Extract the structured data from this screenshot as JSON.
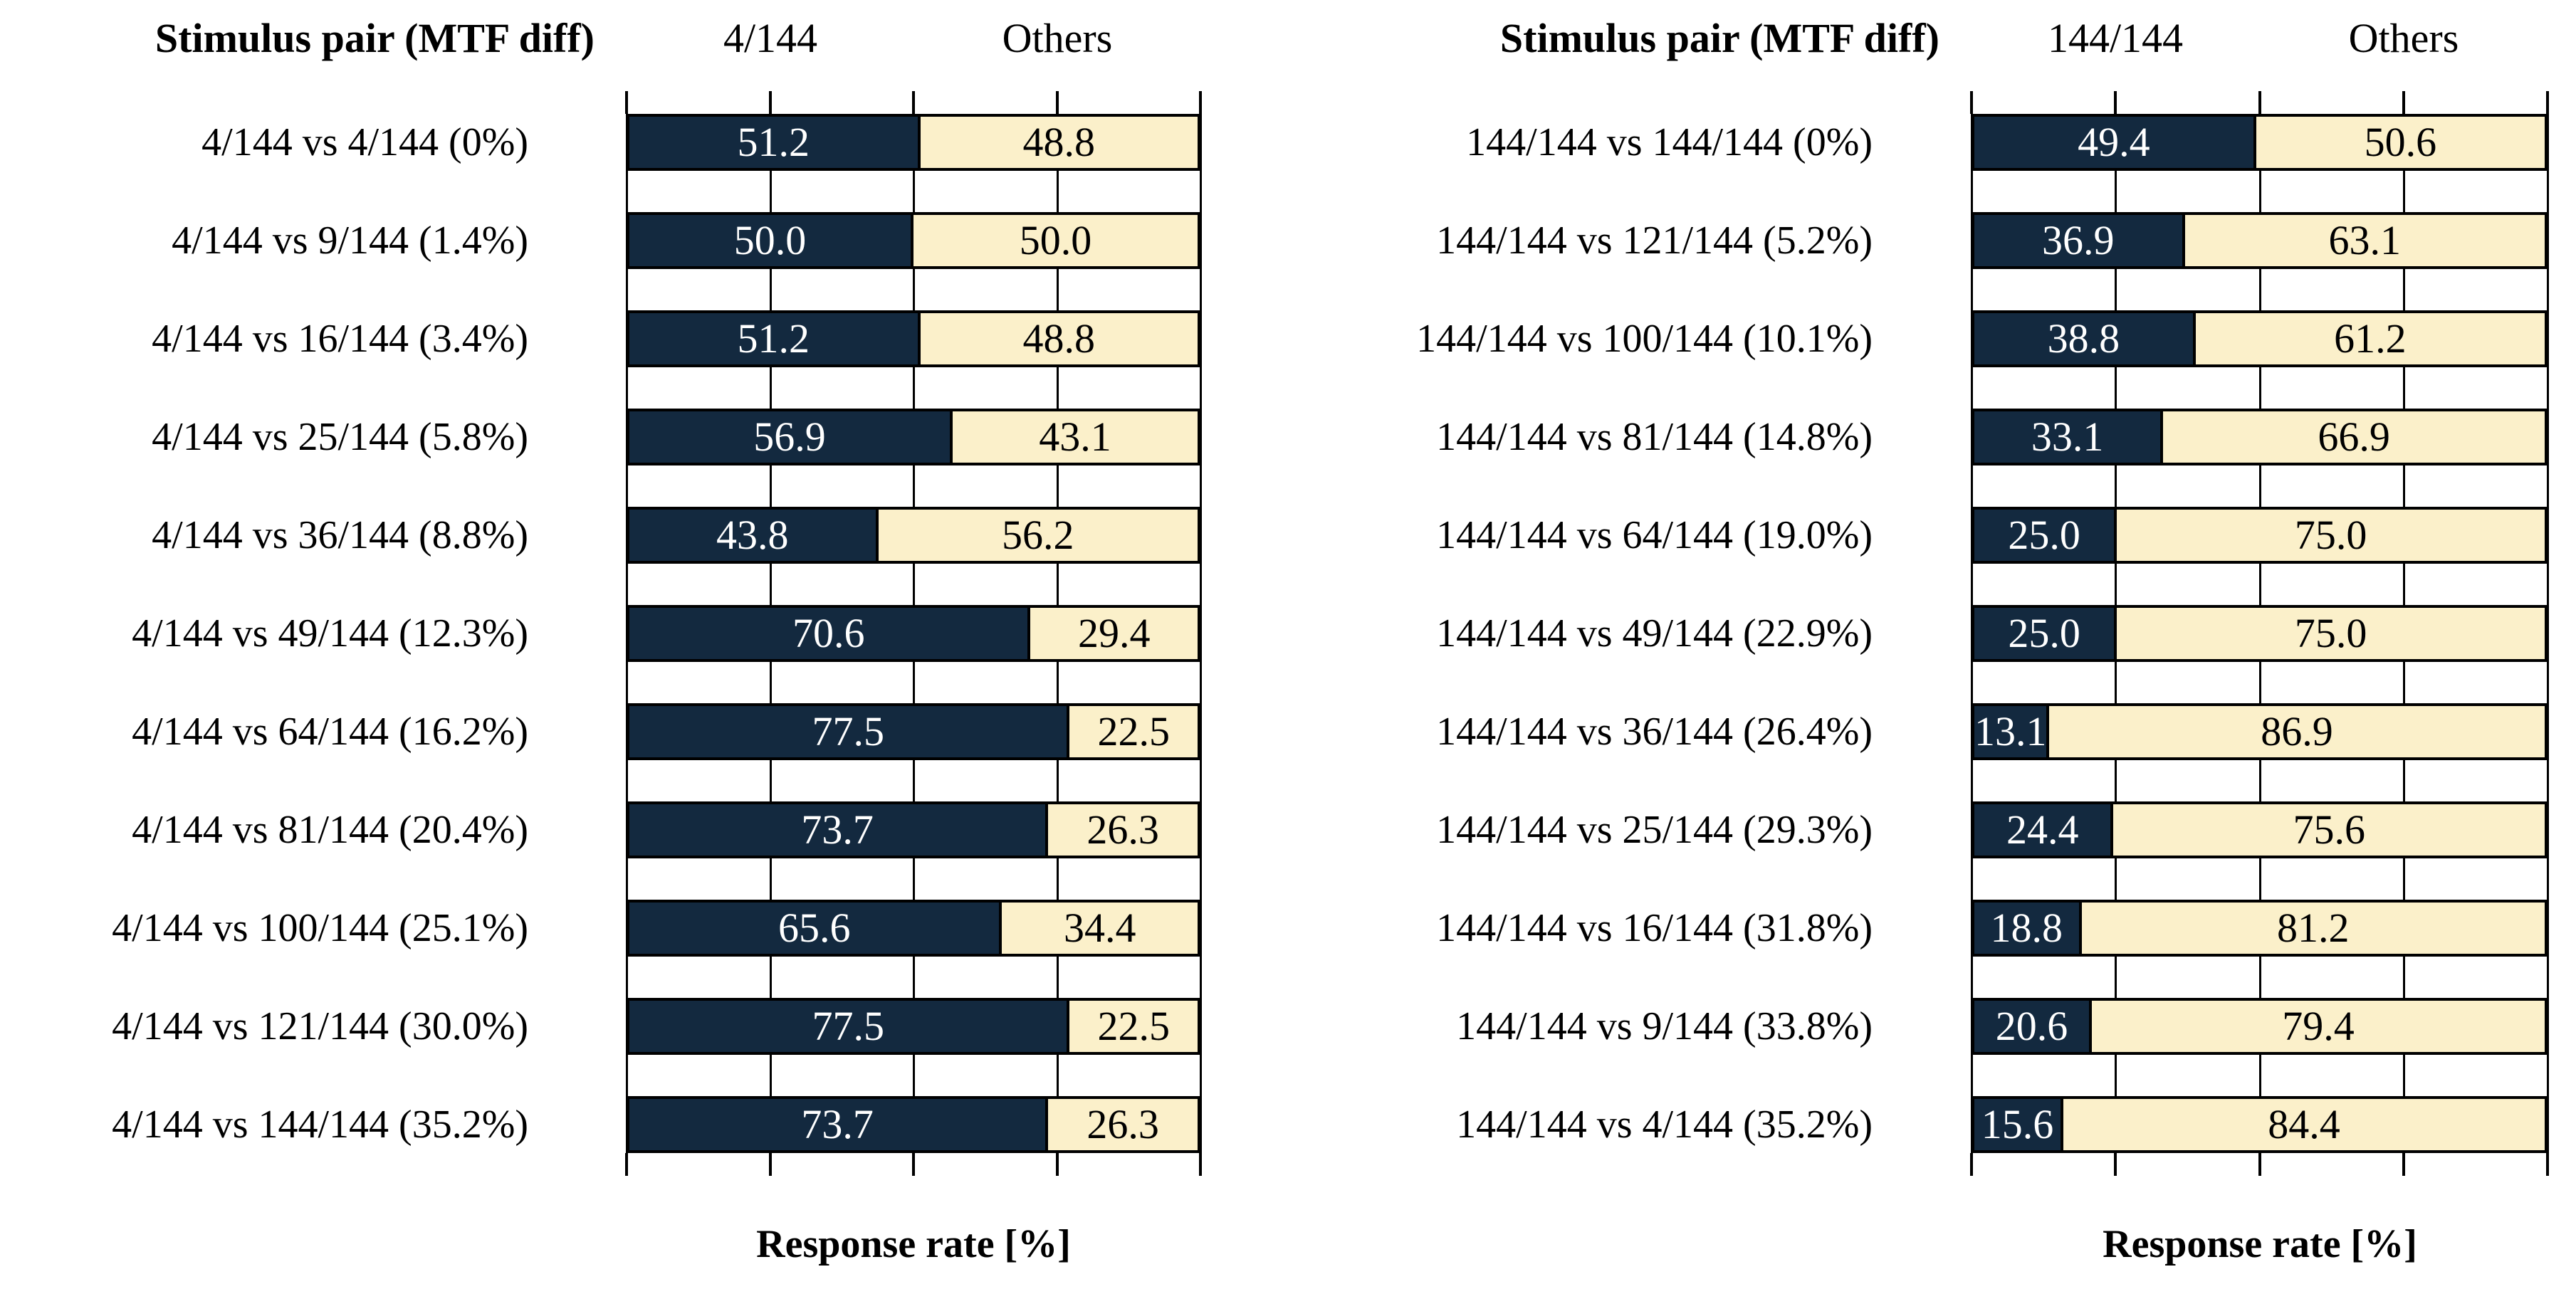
{
  "figure": {
    "background": "#ffffff",
    "description_axis_label": "Response rate [%]"
  },
  "colors": {
    "key_fill": "#13293f",
    "others_fill": "#fbf0ca",
    "key_text": "#ffffff",
    "others_text": "#000000",
    "line": "#000000"
  },
  "chart_data": [
    {
      "type": "bar",
      "orientation": "horizontal-stacked",
      "col_header": "Stimulus pair (MTF diff)",
      "key_header": "4/144",
      "others_header": "Others",
      "xlabel": "Response rate [%]",
      "xlim": [
        0,
        100
      ],
      "xticks": [
        0,
        25,
        50,
        75,
        100
      ],
      "legend": [
        "4/144",
        "Others"
      ],
      "rows": [
        {
          "pair": "4/144 vs 4/144 (0%)",
          "key": "51.2",
          "others": "48.8"
        },
        {
          "pair": "4/144 vs 9/144 (1.4%)",
          "key": "50.0",
          "others": "50.0"
        },
        {
          "pair": "4/144 vs 16/144 (3.4%)",
          "key": "51.2",
          "others": "48.8"
        },
        {
          "pair": "4/144 vs 25/144 (5.8%)",
          "key": "56.9",
          "others": "43.1"
        },
        {
          "pair": "4/144 vs 36/144 (8.8%)",
          "key": "43.8",
          "others": "56.2"
        },
        {
          "pair": "4/144 vs 49/144 (12.3%)",
          "key": "70.6",
          "others": "29.4"
        },
        {
          "pair": "4/144 vs 64/144 (16.2%)",
          "key": "77.5",
          "others": "22.5"
        },
        {
          "pair": "4/144 vs 81/144 (20.4%)",
          "key": "73.7",
          "others": "26.3"
        },
        {
          "pair": "4/144 vs 100/144 (25.1%)",
          "key": "65.6",
          "others": "34.4"
        },
        {
          "pair": "4/144 vs 121/144 (30.0%)",
          "key": "77.5",
          "others": "22.5"
        },
        {
          "pair": "4/144 vs 144/144 (35.2%)",
          "key": "73.7",
          "others": "26.3"
        }
      ]
    },
    {
      "type": "bar",
      "orientation": "horizontal-stacked",
      "col_header": "Stimulus pair (MTF diff)",
      "key_header": "144/144",
      "others_header": "Others",
      "xlabel": "Response rate [%]",
      "xlim": [
        0,
        100
      ],
      "xticks": [
        0,
        25,
        50,
        75,
        100
      ],
      "legend": [
        "144/144",
        "Others"
      ],
      "rows": [
        {
          "pair": "144/144 vs 144/144 (0%)",
          "key": "49.4",
          "others": "50.6"
        },
        {
          "pair": "144/144 vs 121/144 (5.2%)",
          "key": "36.9",
          "others": "63.1"
        },
        {
          "pair": "144/144 vs 100/144 (10.1%)",
          "key": "38.8",
          "others": "61.2"
        },
        {
          "pair": "144/144 vs 81/144 (14.8%)",
          "key": "33.1",
          "others": "66.9"
        },
        {
          "pair": "144/144 vs 64/144 (19.0%)",
          "key": "25.0",
          "others": "75.0"
        },
        {
          "pair": "144/144 vs 49/144 (22.9%)",
          "key": "25.0",
          "others": "75.0"
        },
        {
          "pair": "144/144 vs 36/144 (26.4%)",
          "key": "13.1",
          "others": "86.9"
        },
        {
          "pair": "144/144 vs 25/144 (29.3%)",
          "key": "24.4",
          "others": "75.6"
        },
        {
          "pair": "144/144 vs 16/144 (31.8%)",
          "key": "18.8",
          "others": "81.2"
        },
        {
          "pair": "144/144 vs 9/144 (33.8%)",
          "key": "20.6",
          "others": "79.4"
        },
        {
          "pair": "144/144 vs 4/144 (35.2%)",
          "key": "15.6",
          "others": "84.4"
        }
      ]
    }
  ]
}
